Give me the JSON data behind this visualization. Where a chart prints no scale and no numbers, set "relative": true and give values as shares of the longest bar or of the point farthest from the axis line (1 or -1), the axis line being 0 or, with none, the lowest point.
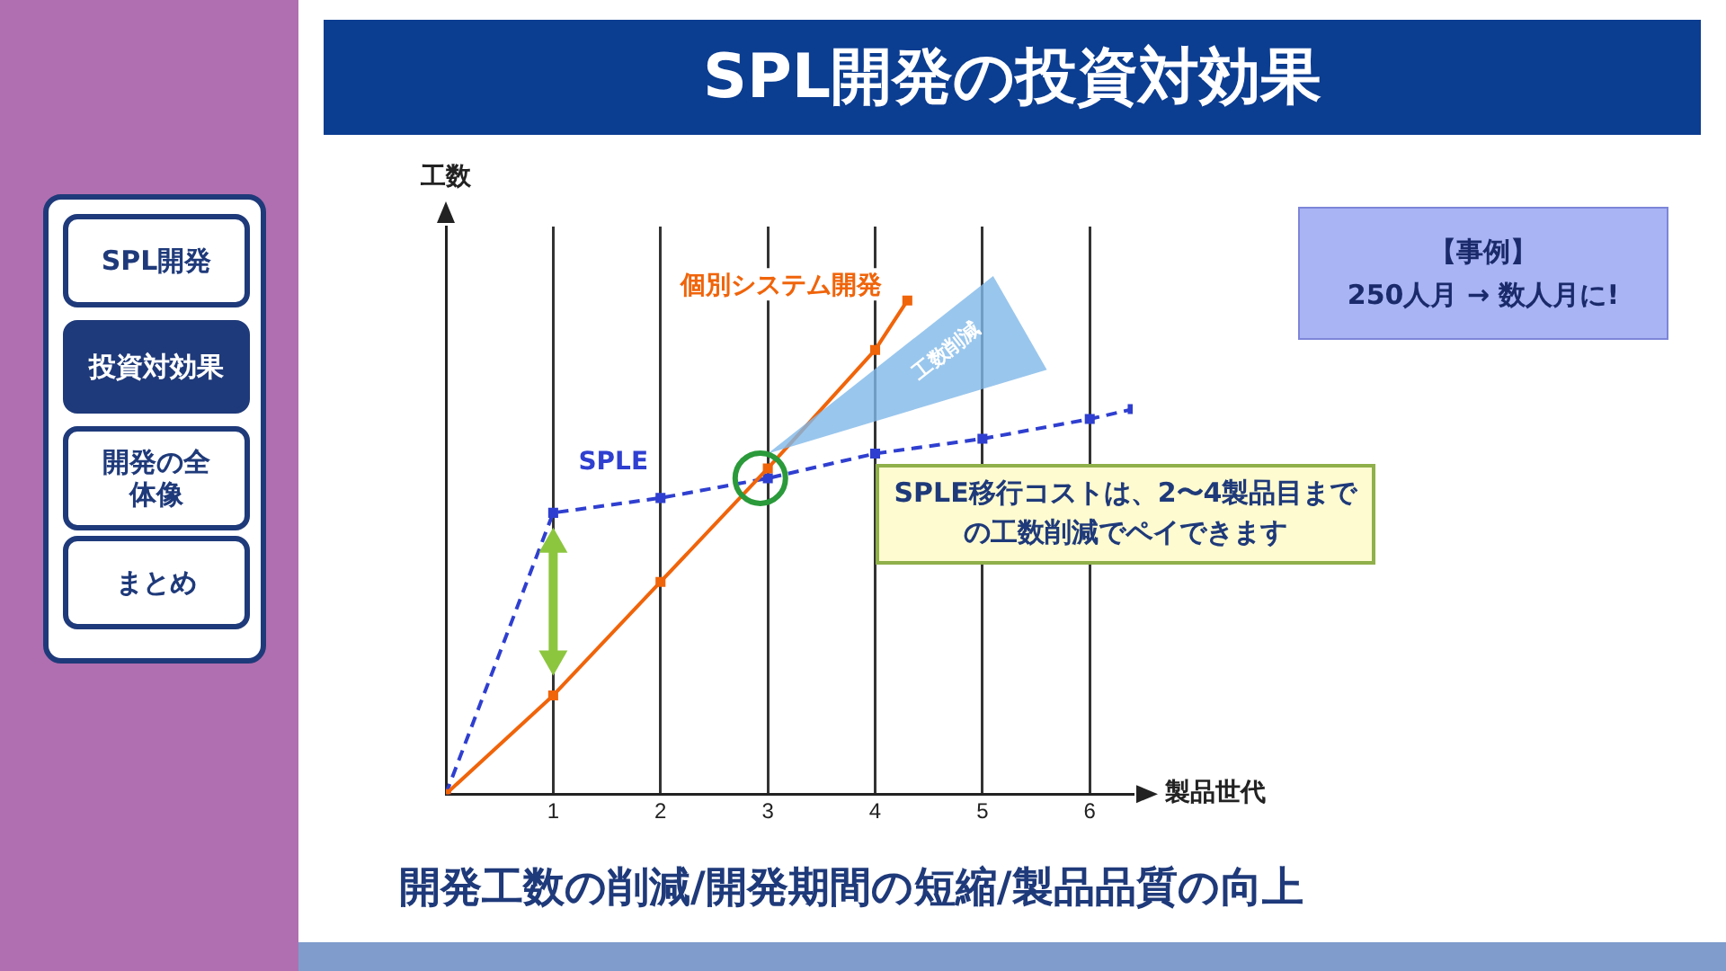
{
  "chart_data": {
    "type": "line",
    "title": "SPL開発の投資対効果",
    "xlabel": "製品世代",
    "ylabel": "工数",
    "relative": true,
    "xlim": [
      0,
      6.4
    ],
    "xticks": [
      1,
      2,
      3,
      4,
      5,
      6
    ],
    "grid": "x",
    "legend": false,
    "marker": "square",
    "series": [
      {
        "name": "個別システム開発",
        "color": "#f0640a",
        "line_style": "solid",
        "x": [
          0,
          1,
          2,
          3,
          4,
          4.3
        ],
        "values": [
          0,
          0.2,
          0.43,
          0.66,
          0.9,
          1
        ]
      },
      {
        "name": "SPLE",
        "color": "#2f3fd0",
        "line_style": "dashed",
        "x": [
          0,
          1,
          2,
          3,
          4,
          5,
          6,
          6.4
        ],
        "values": [
          0,
          0.57,
          0.6,
          0.64,
          0.69,
          0.72,
          0.76,
          0.78
        ]
      }
    ],
    "annotations": [
      "【事例】",
      "250人月 → 数人月に!",
      "SPLE移行コストは、2〜4製品目までの工数削減でペイできます",
      "工数削減",
      "開発工数の削減/開発期間の短縮/製品品質の向上",
      "SPL開発",
      "投資対効果",
      "開発の全体像",
      "まとめ"
    ]
  }
}
